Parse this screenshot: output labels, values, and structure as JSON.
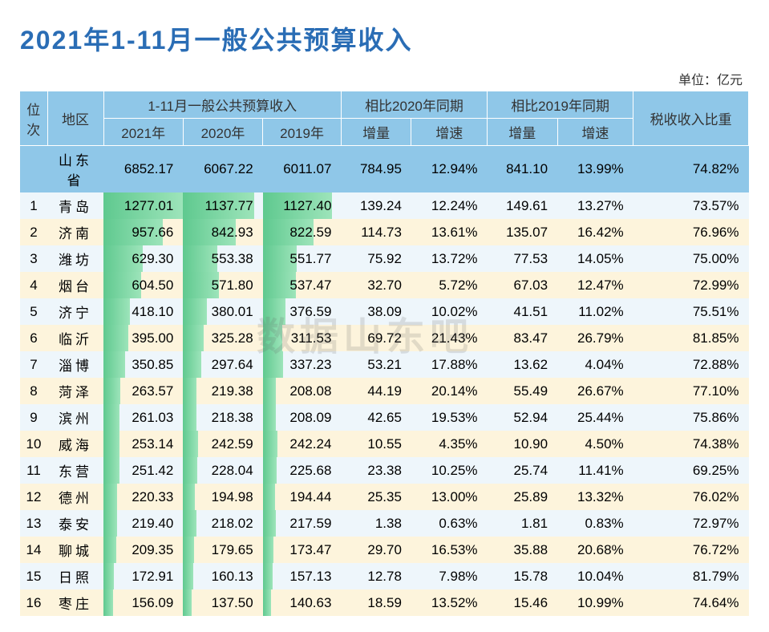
{
  "title": "2021年1-11月一般公共预算收入",
  "unit_label": "单位：亿元",
  "watermark": "数据山东吧",
  "colors": {
    "title": "#2a6db5",
    "header_bg": "#8fc7e8",
    "row_even_bg": "#eef6fb",
    "row_odd_bg": "#fdf4dc",
    "bar_gradient_start": "#5fc98f",
    "bar_gradient_end": "#9de4ba"
  },
  "header": {
    "rank": "位次",
    "region": "地区",
    "group_budget": "1-11月一般公共预算收入",
    "group_vs2020": "相比2020年同期",
    "group_vs2019": "相比2019年同期",
    "tax_ratio": "税收收入比重",
    "y2021": "2021年",
    "y2020": "2020年",
    "y2019": "2019年",
    "inc_amt": "增量",
    "inc_rate": "增速"
  },
  "bar_max": 1277.01,
  "province": {
    "region": "山东省",
    "y2021": "6852.17",
    "y2020": "6067.22",
    "y2019": "6011.07",
    "d20_amt": "784.95",
    "d20_rate": "12.94%",
    "d19_amt": "841.10",
    "d19_rate": "13.99%",
    "tax": "74.82%"
  },
  "rows": [
    {
      "rank": "1",
      "region": "青岛",
      "y2021": 1277.01,
      "y2020": 1137.77,
      "y2019": 1127.4,
      "d20_amt": "139.24",
      "d20_rate": "12.24%",
      "d19_amt": "149.61",
      "d19_rate": "13.27%",
      "tax": "73.57%"
    },
    {
      "rank": "2",
      "region": "济南",
      "y2021": 957.66,
      "y2020": 842.93,
      "y2019": 822.59,
      "d20_amt": "114.73",
      "d20_rate": "13.61%",
      "d19_amt": "135.07",
      "d19_rate": "16.42%",
      "tax": "76.96%"
    },
    {
      "rank": "3",
      "region": "潍坊",
      "y2021": 629.3,
      "y2020": 553.38,
      "y2019": 551.77,
      "d20_amt": "75.92",
      "d20_rate": "13.72%",
      "d19_amt": "77.53",
      "d19_rate": "14.05%",
      "tax": "75.00%"
    },
    {
      "rank": "4",
      "region": "烟台",
      "y2021": 604.5,
      "y2020": 571.8,
      "y2019": 537.47,
      "d20_amt": "32.70",
      "d20_rate": "5.72%",
      "d19_amt": "67.03",
      "d19_rate": "12.47%",
      "tax": "72.99%"
    },
    {
      "rank": "5",
      "region": "济宁",
      "y2021": 418.1,
      "y2020": 380.01,
      "y2019": 376.59,
      "d20_amt": "38.09",
      "d20_rate": "10.02%",
      "d19_amt": "41.51",
      "d19_rate": "11.02%",
      "tax": "75.51%"
    },
    {
      "rank": "6",
      "region": "临沂",
      "y2021": 395.0,
      "y2020": 325.28,
      "y2019": 311.53,
      "d20_amt": "69.72",
      "d20_rate": "21.43%",
      "d19_amt": "83.47",
      "d19_rate": "26.79%",
      "tax": "81.85%"
    },
    {
      "rank": "7",
      "region": "淄博",
      "y2021": 350.85,
      "y2020": 297.64,
      "y2019": 337.23,
      "d20_amt": "53.21",
      "d20_rate": "17.88%",
      "d19_amt": "13.62",
      "d19_rate": "4.04%",
      "tax": "72.88%"
    },
    {
      "rank": "8",
      "region": "菏泽",
      "y2021": 263.57,
      "y2020": 219.38,
      "y2019": 208.08,
      "d20_amt": "44.19",
      "d20_rate": "20.14%",
      "d19_amt": "55.49",
      "d19_rate": "26.67%",
      "tax": "77.10%"
    },
    {
      "rank": "9",
      "region": "滨州",
      "y2021": 261.03,
      "y2020": 218.38,
      "y2019": 208.09,
      "d20_amt": "42.65",
      "d20_rate": "19.53%",
      "d19_amt": "52.94",
      "d19_rate": "25.44%",
      "tax": "75.86%"
    },
    {
      "rank": "10",
      "region": "威海",
      "y2021": 253.14,
      "y2020": 242.59,
      "y2019": 242.24,
      "d20_amt": "10.55",
      "d20_rate": "4.35%",
      "d19_amt": "10.90",
      "d19_rate": "4.50%",
      "tax": "74.38%"
    },
    {
      "rank": "11",
      "region": "东营",
      "y2021": 251.42,
      "y2020": 228.04,
      "y2019": 225.68,
      "d20_amt": "23.38",
      "d20_rate": "10.25%",
      "d19_amt": "25.74",
      "d19_rate": "11.41%",
      "tax": "69.25%"
    },
    {
      "rank": "12",
      "region": "德州",
      "y2021": 220.33,
      "y2020": 194.98,
      "y2019": 194.44,
      "d20_amt": "25.35",
      "d20_rate": "13.00%",
      "d19_amt": "25.89",
      "d19_rate": "13.32%",
      "tax": "76.02%"
    },
    {
      "rank": "13",
      "region": "泰安",
      "y2021": 219.4,
      "y2020": 218.02,
      "y2019": 217.59,
      "d20_amt": "1.38",
      "d20_rate": "0.63%",
      "d19_amt": "1.81",
      "d19_rate": "0.83%",
      "tax": "72.97%"
    },
    {
      "rank": "14",
      "region": "聊城",
      "y2021": 209.35,
      "y2020": 179.65,
      "y2019": 173.47,
      "d20_amt": "29.70",
      "d20_rate": "16.53%",
      "d19_amt": "35.88",
      "d19_rate": "20.68%",
      "tax": "76.72%"
    },
    {
      "rank": "15",
      "region": "日照",
      "y2021": 172.91,
      "y2020": 160.13,
      "y2019": 157.13,
      "d20_amt": "12.78",
      "d20_rate": "7.98%",
      "d19_amt": "15.78",
      "d19_rate": "10.04%",
      "tax": "81.79%"
    },
    {
      "rank": "16",
      "region": "枣庄",
      "y2021": 156.09,
      "y2020": 137.5,
      "y2019": 140.63,
      "d20_amt": "18.59",
      "d20_rate": "13.52%",
      "d19_amt": "15.46",
      "d19_rate": "10.99%",
      "tax": "74.64%"
    }
  ]
}
